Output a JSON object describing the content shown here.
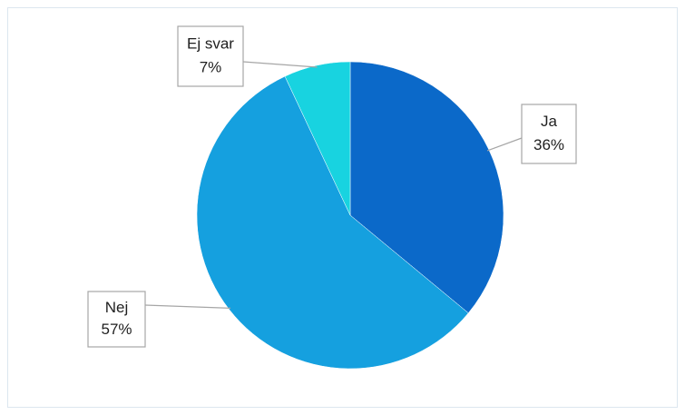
{
  "chart_data": {
    "type": "pie",
    "categories": [
      "Ja",
      "Nej",
      "Ej svar"
    ],
    "values": [
      36,
      57,
      7
    ],
    "value_labels": [
      "36%",
      "57%",
      "7%"
    ],
    "colors": [
      "#0b69c9",
      "#15a0df",
      "#18d3e0"
    ]
  }
}
